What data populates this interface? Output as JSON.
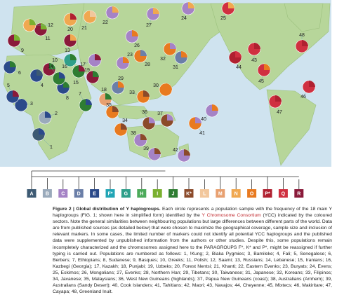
{
  "figure": {
    "map_labels": [
      "1",
      "2",
      "3",
      "4",
      "5",
      "6",
      "7",
      "8",
      "9",
      "10",
      "11",
      "12",
      "13",
      "14",
      "15",
      "16",
      "17",
      "18",
      "19",
      "20",
      "21",
      "22",
      "23",
      "24",
      "25",
      "26",
      "27",
      "28",
      "29",
      "30",
      "31",
      "32",
      "33",
      "34",
      "35",
      "36",
      "37",
      "38",
      "39",
      "40",
      "41",
      "42",
      "43",
      "44",
      "45",
      "46",
      "47",
      "48"
    ],
    "haplogroups": [
      {
        "label": "A",
        "color": "#3d5a73"
      },
      {
        "label": "B",
        "color": "#9aaabb"
      },
      {
        "label": "C",
        "color": "#a583c6"
      },
      {
        "label": "D",
        "color": "#6b7fa8"
      },
      {
        "label": "E",
        "color": "#2b4a8a"
      },
      {
        "label": "F*",
        "color": "#22a5b5"
      },
      {
        "label": "G",
        "color": "#2f9f8a"
      },
      {
        "label": "H",
        "color": "#4caa5a"
      },
      {
        "label": "I",
        "color": "#7ab030"
      },
      {
        "label": "J",
        "color": "#2e7d32"
      },
      {
        "label": "K*",
        "color": "#8b4a2a"
      },
      {
        "label": "L",
        "color": "#f2c79c"
      },
      {
        "label": "M",
        "color": "#e8a070"
      },
      {
        "label": "N",
        "color": "#f0a850"
      },
      {
        "label": "O",
        "color": "#e87a20"
      },
      {
        "label": "P*",
        "color": "#b02030"
      },
      {
        "label": "Q",
        "color": "#d03040"
      },
      {
        "label": "R",
        "color": "#8a1a3a"
      }
    ],
    "caption": {
      "label": "Figure 2 |",
      "title": "Global distribution of Y haplogroups.",
      "text_before": "Each circle represents a population sample with the frequency of the 18 main Y haplogroups (FIG. 1; shown here in simplified form) identified by the",
      "link": "Y Chromosome Consortium",
      "text_after": "(YCC) indicated by the coloured sectors. Note the general similarities between neighbouring populations but large differences between different parts of the world. Data are from published sources (as detailed below) that were chosen to maximize the geographical coverage, sample size and inclusion of relevant markers. In some cases, the limited number of markers could not identify all potential YCC haplogroups and the published data were supplemented by unpublished information from the authors or other studies. Despite this, some populations remain incompletely characterized and the chromosomes assigned here to the PARAGROUPS F*, K* and P*, might be reassigned if further typing is carried out. Populations are numbered as follows: 1, !Kung; 2, Biaka Pygmies; 3, Bamileke; 4, Fali; 5, Senegalese; 6, Berbers; 7, Ethiopians; 8, Sudanese; 9, Basques; 10, Greeks; 11, Polish; 12, Saami; 13, Russians; 14, Lebanese; 15, Iranians; 16, Kazbegi (Georgia); 17, Kazakh; 18, Punjabi; 19, Uzbeks; 20, Forest Nentsi; 21, Khanti; 22, Eastern Evenks; 23, Buryats; 24, Evens; 25, Eskimos; 26, Mongolians; 27, Evenks; 28, Northern Han; 29, Tibetans; 30, Taiwanese; 31, Japanese; 32, Koreans; 33, Filipinos; 34, Javanese; 35, Malaysians; 36, West New Guineans (highlands); 37, Papua New Guineans (coast); 38, Australians (Arnhem); 39, Australians (Sandy Desert); 40, Cook Islanders; 41, Tahitians; 42, Maori; 43, Navajos; 44, Cheyenne; 45, Mixtecs; 46, Makiritare; 47, Cayapa; 48, Greenland Inuit."
    }
  }
}
